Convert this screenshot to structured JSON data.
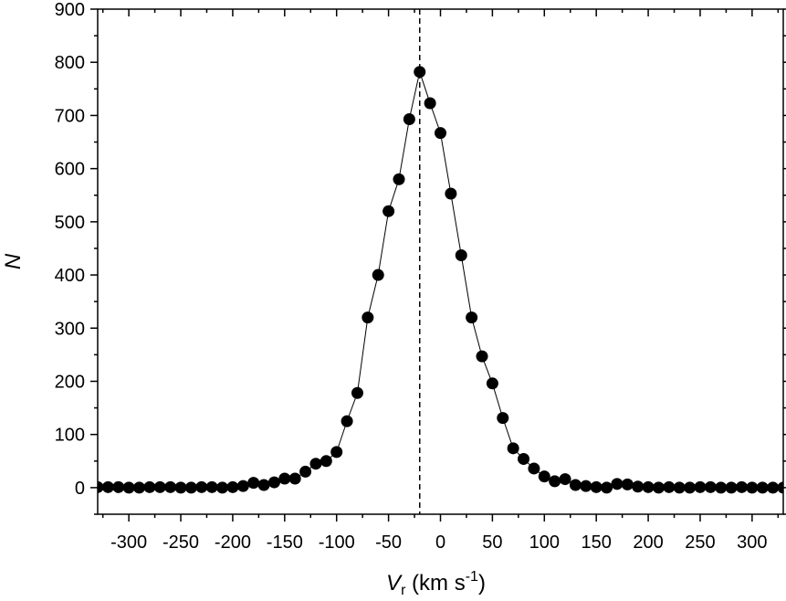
{
  "chart_data": {
    "type": "scatter",
    "connected": true,
    "xlabel": {
      "main": "V",
      "sub": "r",
      "unit_open": " (km s",
      "sup": "-1",
      "unit_close": ")"
    },
    "ylabel": "N",
    "xlim": [
      -330,
      330
    ],
    "ylim": [
      -50,
      900
    ],
    "xticks": [
      -300,
      -250,
      -200,
      -150,
      -100,
      -50,
      0,
      50,
      100,
      150,
      200,
      250,
      300
    ],
    "yticks": [
      0,
      100,
      200,
      300,
      400,
      500,
      600,
      700,
      800,
      900
    ],
    "reference_line": {
      "x": -20,
      "style": "dashed"
    },
    "grid": false,
    "marker_color": "#000000",
    "series": [
      {
        "x": [
          -330,
          -320,
          -310,
          -300,
          -290,
          -280,
          -270,
          -260,
          -250,
          -240,
          -230,
          -220,
          -210,
          -200,
          -190,
          -180,
          -170,
          -160,
          -150,
          -140,
          -130,
          -120,
          -110,
          -100,
          -90,
          -80,
          -70,
          -60,
          -50,
          -40,
          -30,
          -20,
          -10,
          0,
          10,
          20,
          30,
          40,
          50,
          60,
          70,
          80,
          90,
          100,
          110,
          120,
          130,
          140,
          150,
          160,
          170,
          180,
          190,
          200,
          210,
          220,
          230,
          240,
          250,
          260,
          270,
          280,
          290,
          300,
          310,
          320,
          330
        ],
        "y": [
          1,
          1,
          1,
          0,
          0,
          1,
          1,
          1,
          0,
          0,
          1,
          1,
          0,
          1,
          3,
          9,
          5,
          10,
          17,
          17,
          30,
          45,
          50,
          67,
          125,
          178,
          320,
          400,
          520,
          580,
          693,
          782,
          723,
          667,
          553,
          437,
          320,
          247,
          196,
          131,
          74,
          54,
          36,
          21,
          12,
          16,
          5,
          3,
          1,
          0,
          7,
          6,
          2,
          1,
          0,
          1,
          0,
          0,
          1,
          1,
          0,
          0,
          1,
          0,
          0,
          0,
          0
        ]
      }
    ]
  }
}
